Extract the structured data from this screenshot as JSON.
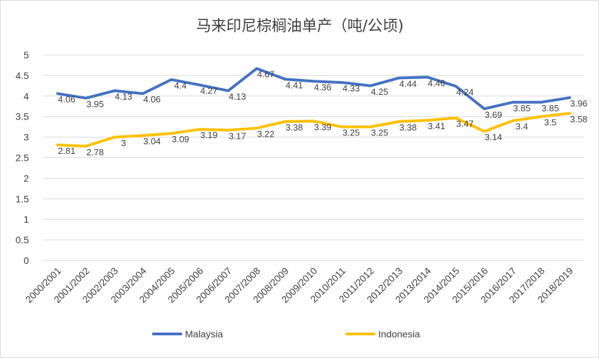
{
  "chart_data": {
    "type": "line",
    "title": "马来印尼棕榈油单产（吨/公顷)",
    "xlabel": "",
    "ylabel": "",
    "ylim": [
      0,
      5
    ],
    "yticks": [
      0,
      0.5,
      1,
      1.5,
      2,
      2.5,
      3,
      3.5,
      4,
      4.5,
      5
    ],
    "ytick_labels": [
      "0",
      "0.5",
      "1",
      "1.5",
      "2",
      "2.5",
      "3",
      "3.5",
      "4",
      "4.5",
      "5"
    ],
    "grid": true,
    "legend_position": "bottom",
    "categories": [
      "2000/2001",
      "2001/2002",
      "2002/2003",
      "2003/2004",
      "2004/2005",
      "2005/2006",
      "2006/2007",
      "2007/2008",
      "2008/2009",
      "2009/2010",
      "2010/2011",
      "2011/2012",
      "2012/2013",
      "2013/2014",
      "2014/2015",
      "2015/2016",
      "2016/2017",
      "2017/2018",
      "2018/2019"
    ],
    "series": [
      {
        "name": "Malaysia",
        "color": "#4472c4",
        "values": [
          4.06,
          3.95,
          4.13,
          4.06,
          4.4,
          4.27,
          4.13,
          4.67,
          4.41,
          4.36,
          4.33,
          4.25,
          4.44,
          4.46,
          4.24,
          3.69,
          3.85,
          3.85,
          3.96
        ],
        "labels": [
          "4.06",
          "3.95",
          "4.13",
          "4.06",
          "4.4",
          "4.27",
          "4.13",
          "4.67",
          "4.41",
          "4.36",
          "4.33",
          "4.25",
          "4.44",
          "4.46",
          "4.24",
          "3.69",
          "3.85",
          "3.85",
          "3.96"
        ]
      },
      {
        "name": "Indonesia",
        "color": "#ffc000",
        "values": [
          2.81,
          2.78,
          3,
          3.04,
          3.09,
          3.19,
          3.17,
          3.22,
          3.38,
          3.39,
          3.25,
          3.25,
          3.38,
          3.41,
          3.47,
          3.14,
          3.4,
          3.5,
          3.58
        ],
        "labels": [
          "2.81",
          "2.78",
          "3",
          "3.04",
          "3.09",
          "3.19",
          "3.17",
          "3.22",
          "3.38",
          "3.39",
          "3.25",
          "3.25",
          "3.38",
          "3.41",
          "3.47",
          "3.14",
          "3.4",
          "3.5",
          "3.58"
        ]
      }
    ]
  }
}
